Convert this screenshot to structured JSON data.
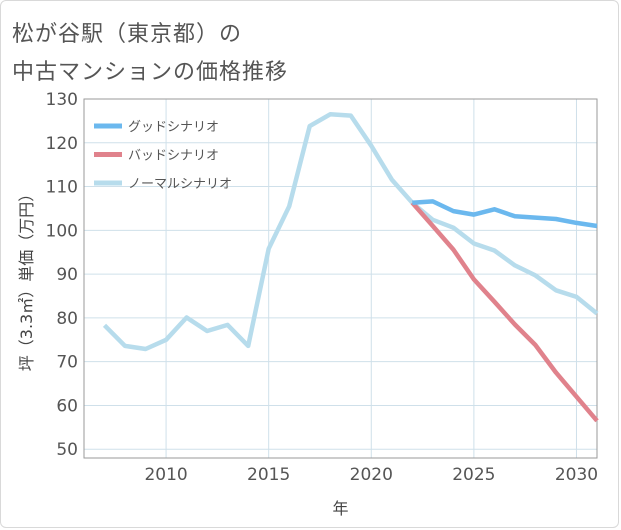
{
  "chart_data": {
    "type": "line",
    "title_line1": "松が谷駅（東京都）の",
    "title_line2": "中古マンションの価格推移",
    "xlabel": "年",
    "ylabel": "坪（3.3㎡）単価（万円）",
    "xlim": [
      2006,
      2031
    ],
    "ylim": [
      48,
      130
    ],
    "x_ticks": [
      2010,
      2015,
      2020,
      2025,
      2030
    ],
    "y_ticks": [
      50,
      60,
      70,
      80,
      90,
      100,
      110,
      120,
      130
    ],
    "grid": true,
    "legend_position": "top-left",
    "series": [
      {
        "name": "グッドシナリオ",
        "color": "#6bb8ee",
        "x": [
          2022,
          2023,
          2024,
          2025,
          2026,
          2027,
          2028,
          2029,
          2030,
          2031
        ],
        "values": [
          106.3,
          106.6,
          104.4,
          103.6,
          104.8,
          103.2,
          102.9,
          102.6,
          101.7,
          101.0
        ]
      },
      {
        "name": "バッドシナリオ",
        "color": "#e0828c",
        "x": [
          2022,
          2023,
          2024,
          2025,
          2026,
          2027,
          2028,
          2029,
          2030,
          2031
        ],
        "values": [
          106.3,
          101.0,
          95.6,
          88.8,
          83.7,
          78.5,
          73.8,
          67.5,
          62.0,
          56.5
        ]
      },
      {
        "name": "ノーマルシナリオ",
        "color": "#b7dcec",
        "x": [
          2007,
          2008,
          2009,
          2010,
          2011,
          2012,
          2013,
          2014,
          2015,
          2016,
          2017,
          2018,
          2019,
          2020,
          2021,
          2022,
          2023,
          2024,
          2025,
          2026,
          2027,
          2028,
          2029,
          2030,
          2031
        ],
        "values": [
          78.3,
          73.6,
          72.9,
          75.0,
          80.1,
          77.0,
          78.4,
          73.6,
          95.8,
          105.5,
          123.8,
          126.5,
          126.2,
          119.3,
          111.6,
          106.3,
          102.4,
          100.6,
          97.0,
          95.4,
          92.0,
          89.7,
          86.3,
          84.8,
          81.0
        ]
      }
    ]
  }
}
